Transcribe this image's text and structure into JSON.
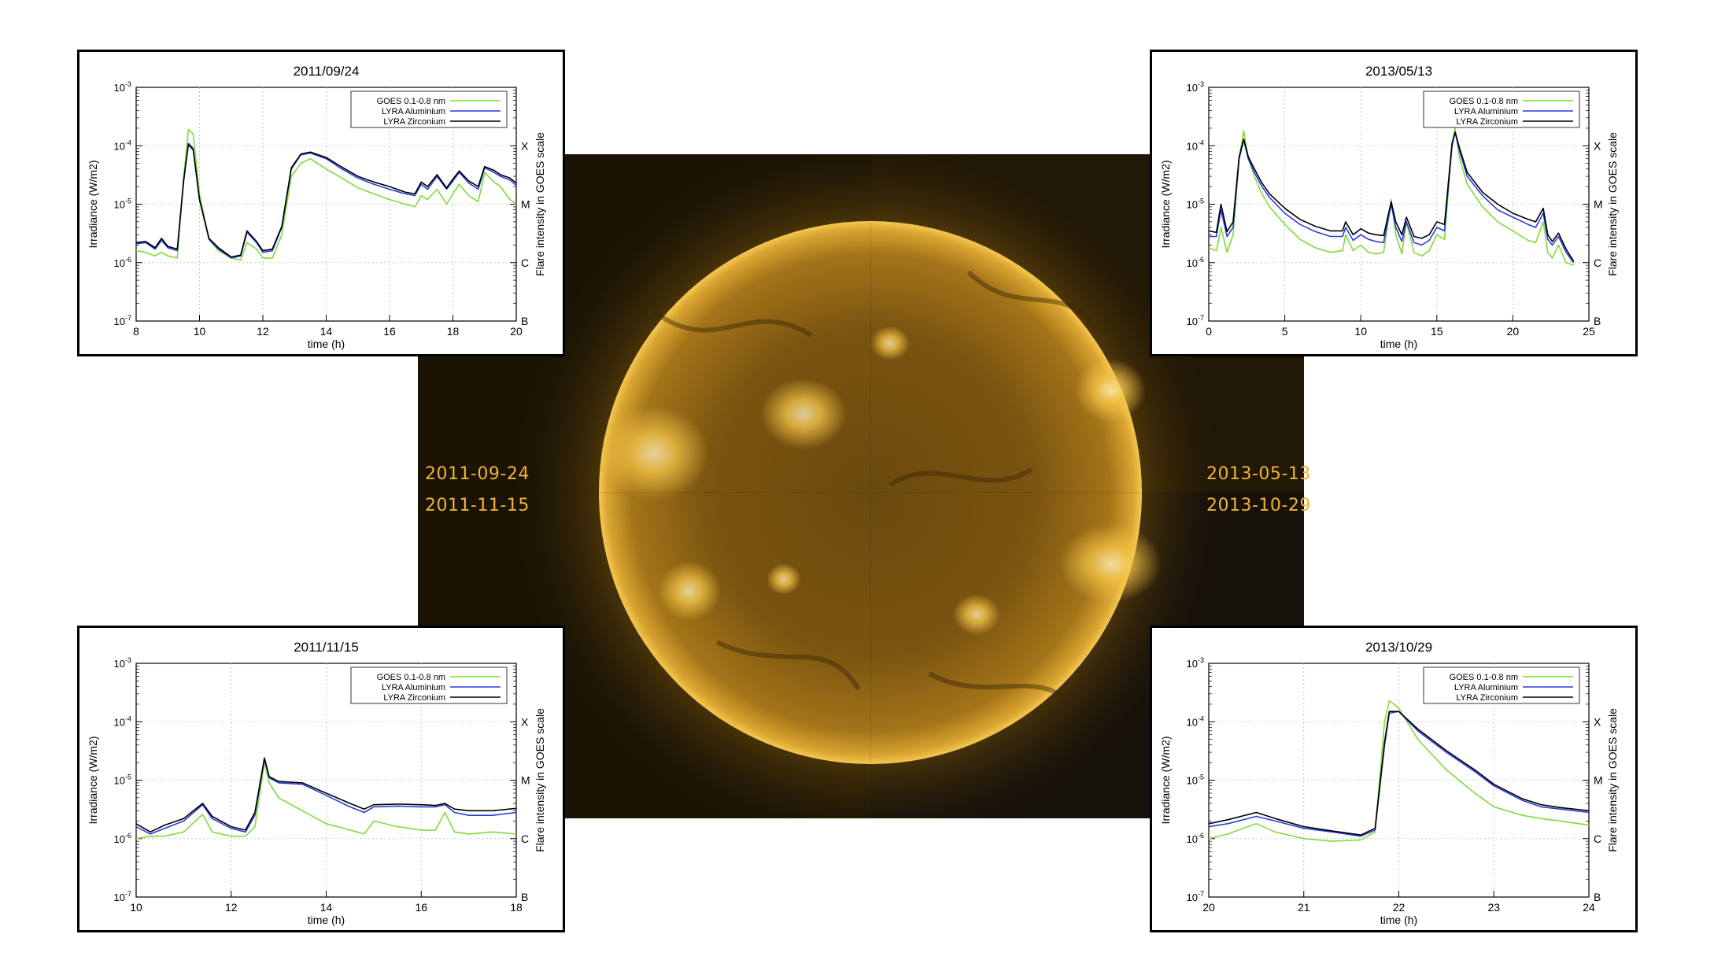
{
  "sun_labels": {
    "top_left": "2011-09-24",
    "bottom_left": "2011-11-15",
    "top_right": "2013-05-13",
    "bottom_right": "2013-10-29"
  },
  "colors": {
    "goes": "#7fdc3a",
    "aluminium": "#2a3cdc",
    "zirconium": "#000000",
    "sun_label": "#f2b233"
  },
  "chart_data": [
    {
      "type": "line",
      "title": "2011/09/24",
      "xlabel": "time (h)",
      "ylabel": "Irradiance (W/m2)",
      "y2label": "Flare intensity in GOES scale",
      "ylog": true,
      "xlim": [
        8,
        20
      ],
      "xticks": [
        8,
        10,
        12,
        14,
        16,
        18,
        20
      ],
      "ylim": [
        1e-07,
        0.001
      ],
      "yticks": [
        "10-7",
        "10-6",
        "10-5",
        "10-4",
        "10-3"
      ],
      "goes_classes": [
        "B",
        "C",
        "M",
        "X"
      ],
      "legend": [
        "GOES 0.1-0.8 nm",
        "LYRA Aluminium",
        "LYRA Zirconium"
      ],
      "series": [
        {
          "name": "GOES 0.1-0.8 nm",
          "x": [
            8,
            8.3,
            8.6,
            8.8,
            9.0,
            9.3,
            9.5,
            9.65,
            9.8,
            10.0,
            10.3,
            10.6,
            11.0,
            11.3,
            11.5,
            11.8,
            12.0,
            12.3,
            12.6,
            12.9,
            13.2,
            13.5,
            14,
            14.5,
            15,
            15.5,
            16,
            16.5,
            16.8,
            17,
            17.2,
            17.5,
            17.8,
            18,
            18.2,
            18.5,
            18.8,
            19,
            19.3,
            19.5,
            19.8,
            20
          ],
          "y": [
            1.6e-06,
            1.5e-06,
            1.3e-06,
            1.5e-06,
            1.3e-06,
            1.2e-06,
            3e-05,
            0.00019,
            0.00016,
            1.5e-05,
            2.5e-06,
            1.6e-06,
            1.2e-06,
            1.1e-06,
            2.2e-06,
            1.7e-06,
            1.2e-06,
            1.2e-06,
            3e-06,
            3e-05,
            5e-05,
            6e-05,
            4e-05,
            2.8e-05,
            1.9e-05,
            1.5e-05,
            1.2e-05,
            1e-05,
            9e-06,
            1.4e-05,
            1.2e-05,
            1.8e-05,
            1e-05,
            1.5e-05,
            2.2e-05,
            1.4e-05,
            1.1e-05,
            3.5e-05,
            2.4e-05,
            2e-05,
            1.2e-05,
            1e-05
          ]
        },
        {
          "name": "LYRA Aluminium",
          "x": [
            8,
            8.3,
            8.6,
            8.8,
            9.0,
            9.3,
            9.5,
            9.65,
            9.8,
            10.0,
            10.3,
            10.6,
            11.0,
            11.3,
            11.5,
            11.8,
            12.0,
            12.3,
            12.6,
            12.9,
            13.2,
            13.5,
            14,
            14.5,
            15,
            15.5,
            16,
            16.5,
            16.8,
            17,
            17.2,
            17.5,
            17.8,
            18,
            18.2,
            18.5,
            18.8,
            19,
            19.3,
            19.5,
            19.8,
            20
          ],
          "y": [
            2.1e-06,
            2.2e-06,
            1.7e-06,
            2.4e-06,
            1.8e-06,
            1.6e-06,
            2.5e-05,
            0.00011,
            9e-05,
            1.2e-05,
            2.5e-06,
            1.7e-06,
            1.2e-06,
            1.3e-06,
            3.3e-06,
            2.2e-06,
            1.5e-06,
            1.6e-06,
            4e-06,
            4e-05,
            7e-05,
            7.5e-05,
            6e-05,
            4e-05,
            2.8e-05,
            2.2e-05,
            1.8e-05,
            1.5e-05,
            1.4e-05,
            2.2e-05,
            1.8e-05,
            3e-05,
            1.8e-05,
            2.5e-05,
            3.5e-05,
            2.3e-05,
            1.8e-05,
            4.2e-05,
            3.5e-05,
            3e-05,
            2.6e-05,
            2.1e-05
          ]
        },
        {
          "name": "LYRA Zirconium",
          "x": [
            8,
            8.3,
            8.6,
            8.8,
            9.0,
            9.3,
            9.5,
            9.65,
            9.8,
            10.0,
            10.3,
            10.6,
            11.0,
            11.3,
            11.5,
            11.8,
            12.0,
            12.3,
            12.6,
            12.9,
            13.2,
            13.5,
            14,
            14.5,
            15,
            15.5,
            16,
            16.5,
            16.8,
            17,
            17.2,
            17.5,
            17.8,
            18,
            18.2,
            18.5,
            18.8,
            19,
            19.3,
            19.5,
            19.8,
            20
          ],
          "y": [
            2.2e-06,
            2.3e-06,
            1.8e-06,
            2.6e-06,
            1.9e-06,
            1.7e-06,
            2.6e-05,
            0.000105,
            8.5e-05,
            1.2e-05,
            2.6e-06,
            1.8e-06,
            1.25e-06,
            1.35e-06,
            3.5e-06,
            2.3e-06,
            1.6e-06,
            1.7e-06,
            4.2e-06,
            4.2e-05,
            7.2e-05,
            7.8e-05,
            6.3e-05,
            4.3e-05,
            3e-05,
            2.4e-05,
            2e-05,
            1.6e-05,
            1.5e-05,
            2.4e-05,
            2e-05,
            3.2e-05,
            1.9e-05,
            2.7e-05,
            3.7e-05,
            2.5e-05,
            2e-05,
            4.4e-05,
            3.8e-05,
            3.2e-05,
            2.8e-05,
            2.3e-05
          ]
        }
      ]
    },
    {
      "type": "line",
      "title": "2013/05/13",
      "xlabel": "time (h)",
      "ylabel": "Irradiance (W/m2)",
      "y2label": "Flare intensity in GOES scale",
      "ylog": true,
      "xlim": [
        0,
        25
      ],
      "xticks": [
        0,
        5,
        10,
        15,
        20,
        25
      ],
      "ylim": [
        1e-07,
        0.001
      ],
      "yticks": [
        "10-7",
        "10-6",
        "10-5",
        "10-4",
        "10-3"
      ],
      "goes_classes": [
        "B",
        "C",
        "M",
        "X"
      ],
      "legend": [
        "GOES 0.1-0.8 nm",
        "LYRA Aluminium",
        "LYRA Zirconium"
      ],
      "series": [
        {
          "name": "GOES 0.1-0.8 nm",
          "x": [
            0,
            0.5,
            0.8,
            1.2,
            1.6,
            2.0,
            2.3,
            2.6,
            3,
            3.5,
            4,
            5,
            6,
            7,
            8,
            8.8,
            9,
            9.5,
            10,
            10.5,
            11,
            11.5,
            12,
            12.3,
            12.7,
            13,
            13.5,
            14,
            14.5,
            15,
            15.5,
            16,
            16.2,
            16.5,
            17,
            18,
            19,
            20,
            21,
            21.5,
            22,
            22.3,
            22.6,
            23,
            23.5,
            24
          ],
          "y": [
            1.8e-06,
            1.6e-06,
            4e-06,
            1.5e-06,
            3e-06,
            6e-05,
            0.00018,
            6e-05,
            3e-05,
            1.5e-05,
            9e-06,
            4.5e-06,
            2.5e-06,
            1.8e-06,
            1.5e-06,
            1.6e-06,
            3e-06,
            1.6e-06,
            2e-06,
            1.5e-06,
            1.4e-06,
            1.5e-06,
            1.2e-05,
            3e-06,
            1.4e-06,
            5e-06,
            1.5e-06,
            1.3e-06,
            1.6e-06,
            3e-06,
            2.5e-06,
            0.0001,
            0.0002,
            6e-05,
            2.2e-05,
            9e-06,
            5e-06,
            3.5e-06,
            2.4e-06,
            2.2e-06,
            5e-06,
            1.5e-06,
            1.2e-06,
            2e-06,
            1e-06,
            9e-07
          ]
        },
        {
          "name": "LYRA Aluminium",
          "x": [
            0,
            0.5,
            0.8,
            1.2,
            1.6,
            2.0,
            2.3,
            2.6,
            3,
            3.5,
            4,
            5,
            6,
            7,
            8,
            8.8,
            9,
            9.5,
            10,
            10.5,
            11,
            11.5,
            12,
            12.3,
            12.7,
            13,
            13.5,
            14,
            14.5,
            15,
            15.5,
            16,
            16.2,
            16.5,
            17,
            18,
            19,
            20,
            21,
            21.5,
            22,
            22.3,
            22.6,
            23,
            23.5,
            24
          ],
          "y": [
            2.8e-06,
            2.8e-06,
            8e-06,
            2.8e-06,
            4e-06,
            6e-05,
            0.000125,
            6e-05,
            3.5e-05,
            2e-05,
            1.3e-05,
            7e-06,
            4.5e-06,
            3.4e-06,
            2.8e-06,
            2.8e-06,
            4e-06,
            2.4e-06,
            3e-06,
            2.5e-06,
            2.3e-06,
            2.2e-06,
            1e-05,
            4e-06,
            2.3e-06,
            5e-06,
            2.2e-06,
            2e-06,
            2.4e-06,
            4e-06,
            3.5e-06,
            0.0001,
            0.00017,
            8e-05,
            3e-05,
            1.4e-05,
            8e-06,
            6e-06,
            4.5e-06,
            4e-06,
            7e-06,
            2.5e-06,
            2e-06,
            2.8e-06,
            1.5e-06,
            1e-06
          ]
        },
        {
          "name": "LYRA Zirconium",
          "x": [
            0,
            0.5,
            0.8,
            1.2,
            1.6,
            2.0,
            2.3,
            2.6,
            3,
            3.5,
            4,
            5,
            6,
            7,
            8,
            8.8,
            9,
            9.5,
            10,
            10.5,
            11,
            11.5,
            12,
            12.3,
            12.7,
            13,
            13.5,
            14,
            14.5,
            15,
            15.5,
            16,
            16.2,
            16.5,
            17,
            18,
            19,
            20,
            21,
            21.5,
            22,
            22.3,
            22.6,
            23,
            23.5,
            24
          ],
          "y": [
            3.5e-06,
            3.3e-06,
            1e-05,
            3.4e-06,
            5e-06,
            6.5e-05,
            0.00013,
            6.5e-05,
            4e-05,
            2.3e-05,
            1.5e-05,
            8.5e-06,
            5.5e-06,
            4.2e-06,
            3.5e-06,
            3.5e-06,
            5e-06,
            3e-06,
            3.8e-06,
            3.2e-06,
            3e-06,
            2.9e-06,
            1.1e-05,
            5e-06,
            3e-06,
            6e-06,
            2.8e-06,
            2.6e-06,
            3e-06,
            5e-06,
            4.5e-06,
            0.00011,
            0.00017,
            9e-05,
            3.5e-05,
            1.6e-05,
            1e-05,
            7e-06,
            5.5e-06,
            5e-06,
            8.5e-06,
            3e-06,
            2.3e-06,
            3.2e-06,
            1.7e-06,
            1.05e-06
          ]
        }
      ]
    },
    {
      "type": "line",
      "title": "2011/11/15",
      "xlabel": "time (h)",
      "ylabel": "Irradiance (W/m2)",
      "y2label": "Flare intensity in GOES scale",
      "ylog": true,
      "xlim": [
        10,
        18
      ],
      "xticks": [
        10,
        12,
        14,
        16,
        18
      ],
      "ylim": [
        1e-07,
        0.001
      ],
      "yticks": [
        "10-7",
        "10-6",
        "10-5",
        "10-4",
        "10-3"
      ],
      "goes_classes": [
        "B",
        "C",
        "M",
        "X"
      ],
      "legend": [
        "GOES 0.1-0.8 nm",
        "LYRA Aluminium",
        "LYRA Zirconium"
      ],
      "series": [
        {
          "name": "GOES 0.1-0.8 nm",
          "x": [
            10,
            10.3,
            10.6,
            11,
            11.4,
            11.6,
            12,
            12.3,
            12.5,
            12.7,
            12.8,
            13,
            13.5,
            14,
            14.5,
            14.8,
            15,
            15.5,
            16,
            16.3,
            16.5,
            16.7,
            17,
            17.5,
            18
          ],
          "y": [
            1e-06,
            1.1e-06,
            1.1e-06,
            1.3e-06,
            2.6e-06,
            1.3e-06,
            1.1e-06,
            1.1e-06,
            1.6e-06,
            2e-05,
            9e-06,
            5e-06,
            3e-06,
            1.8e-06,
            1.4e-06,
            1.2e-06,
            2e-06,
            1.6e-06,
            1.4e-06,
            1.4e-06,
            2.8e-06,
            1.3e-06,
            1.2e-06,
            1.3e-06,
            1.2e-06
          ]
        },
        {
          "name": "LYRA Aluminium",
          "x": [
            10,
            10.3,
            10.6,
            11,
            11.4,
            11.6,
            12,
            12.3,
            12.5,
            12.7,
            12.8,
            13,
            13.5,
            14,
            14.5,
            14.8,
            15,
            15.5,
            16,
            16.3,
            16.5,
            16.7,
            17,
            17.5,
            18
          ],
          "y": [
            1.6e-06,
            1.2e-06,
            1.5e-06,
            2e-06,
            3.8e-06,
            2.2e-06,
            1.5e-06,
            1.3e-06,
            2.5e-06,
            2.3e-05,
            1.1e-05,
            9e-06,
            8.5e-06,
            5.5e-06,
            3.5e-06,
            2.8e-06,
            3.5e-06,
            3.6e-06,
            3.5e-06,
            3.5e-06,
            3.8e-06,
            2.8e-06,
            2.5e-06,
            2.5e-06,
            2.8e-06
          ]
        },
        {
          "name": "LYRA Zirconium",
          "x": [
            10,
            10.3,
            10.6,
            11,
            11.4,
            11.6,
            12,
            12.3,
            12.5,
            12.7,
            12.8,
            13,
            13.5,
            14,
            14.5,
            14.8,
            15,
            15.5,
            16,
            16.3,
            16.5,
            16.7,
            17,
            17.5,
            18
          ],
          "y": [
            1.8e-06,
            1.3e-06,
            1.7e-06,
            2.2e-06,
            4e-06,
            2.4e-06,
            1.6e-06,
            1.4e-06,
            2.8e-06,
            2.4e-05,
            1.15e-05,
            9.5e-06,
            9e-06,
            6e-06,
            4e-06,
            3.2e-06,
            3.8e-06,
            3.9e-06,
            3.8e-06,
            3.7e-06,
            4e-06,
            3.2e-06,
            3e-06,
            3e-06,
            3.3e-06
          ]
        }
      ]
    },
    {
      "type": "line",
      "title": "2013/10/29",
      "xlabel": "time (h)",
      "ylabel": "Irradiance (W/m2)",
      "y2label": "Flare intensity in GOES scale",
      "ylog": true,
      "xlim": [
        20,
        24
      ],
      "xticks": [
        20,
        21,
        22,
        23,
        24
      ],
      "ylim": [
        1e-07,
        0.001
      ],
      "yticks": [
        "10-7",
        "10-6",
        "10-5",
        "10-4",
        "10-3"
      ],
      "goes_classes": [
        "B",
        "C",
        "M",
        "X"
      ],
      "legend": [
        "GOES 0.1-0.8 nm",
        "LYRA Aluminium",
        "LYRA Zirconium"
      ],
      "series": [
        {
          "name": "GOES 0.1-0.8 nm",
          "x": [
            20,
            20.2,
            20.5,
            20.7,
            21,
            21.3,
            21.6,
            21.75,
            21.85,
            21.9,
            22,
            22.2,
            22.5,
            22.8,
            23,
            23.3,
            23.5,
            23.7,
            24
          ],
          "y": [
            1e-06,
            1.2e-06,
            1.8e-06,
            1.3e-06,
            1e-06,
            9e-07,
            9.5e-07,
            1.3e-06,
            0.0001,
            0.00023,
            0.00017,
            5e-05,
            1.5e-05,
            6e-06,
            3.5e-06,
            2.5e-06,
            2.2e-06,
            2e-06,
            1.7e-06
          ]
        },
        {
          "name": "LYRA Aluminium",
          "x": [
            20,
            20.2,
            20.5,
            20.7,
            21,
            21.3,
            21.6,
            21.75,
            21.85,
            21.9,
            22,
            22.2,
            22.5,
            22.8,
            23,
            23.3,
            23.5,
            23.7,
            24
          ],
          "y": [
            1.6e-06,
            1.8e-06,
            2.4e-06,
            2e-06,
            1.5e-06,
            1.3e-06,
            1.1e-06,
            1.4e-06,
            4e-05,
            0.00014,
            0.00015,
            7e-05,
            3e-05,
            1.4e-05,
            8e-06,
            4.5e-06,
            3.5e-06,
            3.2e-06,
            2.8e-06
          ]
        },
        {
          "name": "LYRA Zirconium",
          "x": [
            20,
            20.2,
            20.5,
            20.7,
            21,
            21.3,
            21.6,
            21.75,
            21.85,
            21.9,
            22,
            22.2,
            22.5,
            22.8,
            23,
            23.3,
            23.5,
            23.7,
            24
          ],
          "y": [
            1.8e-06,
            2.1e-06,
            2.8e-06,
            2.2e-06,
            1.6e-06,
            1.35e-06,
            1.15e-06,
            1.5e-06,
            4.5e-05,
            0.00015,
            0.00015,
            7.5e-05,
            3.2e-05,
            1.5e-05,
            8.5e-06,
            4.8e-06,
            3.8e-06,
            3.4e-06,
            3e-06
          ]
        }
      ]
    }
  ]
}
